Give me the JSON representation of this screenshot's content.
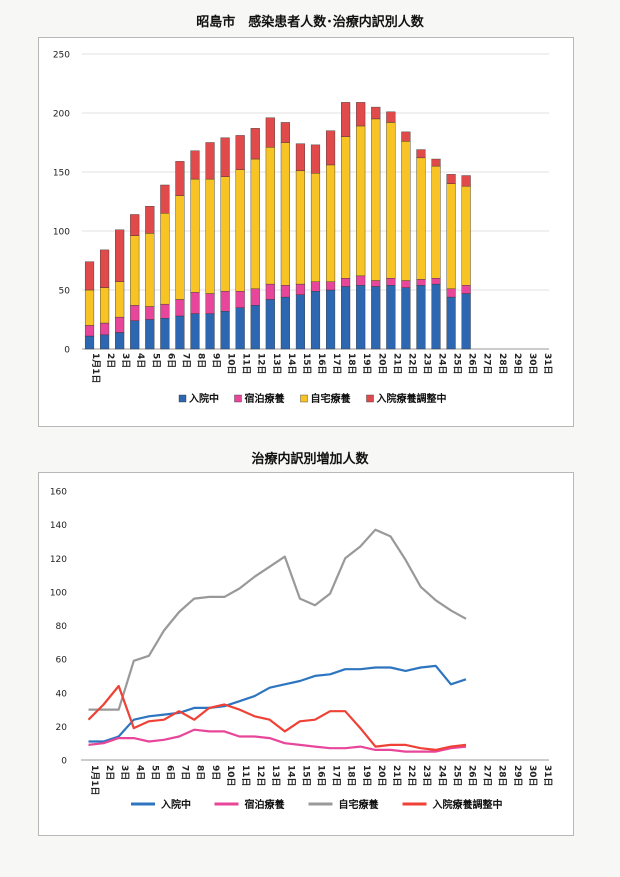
{
  "chart_data": [
    {
      "type": "bar",
      "stacked": true,
      "title": "昭島市　感染患者人数･治療内訳別人数",
      "categories": [
        "1月1日",
        "2日",
        "3日",
        "4日",
        "5日",
        "6日",
        "7日",
        "8日",
        "9日",
        "10日",
        "11日",
        "12日",
        "13日",
        "14日",
        "15日",
        "16日",
        "17日",
        "18日",
        "19日",
        "20日",
        "21日",
        "22日",
        "23日",
        "24日",
        "25日",
        "26日",
        "27日",
        "28日",
        "29日",
        "30日",
        "31日"
      ],
      "series": [
        {
          "name": "入院中",
          "color": "#2e67b1",
          "values": [
            11,
            12,
            14,
            24,
            25,
            26,
            28,
            30,
            30,
            32,
            35,
            37,
            42,
            44,
            46,
            49,
            50,
            53,
            54,
            53,
            54,
            52,
            54,
            55,
            44,
            47,
            null,
            null,
            null,
            null,
            null
          ]
        },
        {
          "name": "宿泊療養",
          "color": "#e8469a",
          "values": [
            9,
            10,
            13,
            13,
            11,
            12,
            14,
            18,
            17,
            17,
            14,
            14,
            13,
            10,
            9,
            8,
            7,
            7,
            8,
            5,
            6,
            6,
            5,
            5,
            7,
            7,
            null,
            null,
            null,
            null,
            null
          ]
        },
        {
          "name": "自宅療養",
          "color": "#f7c325",
          "values": [
            30,
            30,
            30,
            59,
            62,
            77,
            88,
            96,
            97,
            97,
            103,
            110,
            116,
            121,
            96,
            92,
            99,
            120,
            127,
            137,
            132,
            118,
            103,
            95,
            89,
            84,
            null,
            null,
            null,
            null,
            null
          ]
        },
        {
          "name": "入院療養調整中",
          "color": "#e04a4a",
          "values": [
            24,
            32,
            44,
            18,
            23,
            24,
            29,
            24,
            31,
            33,
            29,
            26,
            25,
            17,
            23,
            24,
            29,
            29,
            20,
            10,
            9,
            8,
            7,
            6,
            8,
            9,
            null,
            null,
            null,
            null,
            null
          ]
        }
      ],
      "ylim": [
        0,
        250
      ],
      "yticks": [
        0,
        50,
        100,
        150,
        200,
        250
      ],
      "grid": true,
      "legend": "bottom"
    },
    {
      "type": "line",
      "title": "治療内訳別増加人数",
      "categories": [
        "1月1日",
        "2日",
        "3日",
        "4日",
        "5日",
        "6日",
        "7日",
        "8日",
        "9日",
        "10日",
        "11日",
        "12日",
        "13日",
        "14日",
        "15日",
        "16日",
        "17日",
        "18日",
        "19日",
        "20日",
        "21日",
        "22日",
        "23日",
        "24日",
        "25日",
        "26日",
        "27日",
        "28日",
        "29日",
        "30日",
        "31日"
      ],
      "series": [
        {
          "name": "入院中",
          "color": "#2e75c0",
          "values": [
            11,
            11,
            14,
            24,
            26,
            27,
            28,
            31,
            31,
            32,
            35,
            38,
            43,
            45,
            47,
            50,
            51,
            54,
            54,
            55,
            55,
            53,
            55,
            56,
            45,
            48,
            null,
            null,
            null,
            null,
            null
          ]
        },
        {
          "name": "宿泊療養",
          "color": "#e8469a",
          "values": [
            9,
            10,
            13,
            13,
            11,
            12,
            14,
            18,
            17,
            17,
            14,
            14,
            13,
            10,
            9,
            8,
            7,
            7,
            8,
            6,
            6,
            5,
            5,
            5,
            7,
            8,
            null,
            null,
            null,
            null,
            null
          ]
        },
        {
          "name": "自宅療養",
          "color": "#999999",
          "values": [
            30,
            30,
            30,
            59,
            62,
            77,
            88,
            96,
            97,
            97,
            102,
            109,
            115,
            121,
            96,
            92,
            99,
            120,
            127,
            137,
            133,
            119,
            103,
            95,
            89,
            84,
            null,
            null,
            null,
            null,
            null
          ]
        },
        {
          "name": "入院療養調整中",
          "color": "#ef4136",
          "values": [
            24,
            33,
            44,
            19,
            23,
            24,
            29,
            24,
            31,
            33,
            30,
            26,
            24,
            17,
            23,
            24,
            29,
            29,
            19,
            8,
            9,
            9,
            7,
            6,
            8,
            9,
            null,
            null,
            null,
            null,
            null
          ]
        }
      ],
      "ylim": [
        0,
        160
      ],
      "yticks": [
        0,
        20,
        40,
        60,
        80,
        100,
        120,
        140,
        160
      ],
      "grid": false,
      "legend": "bottom"
    }
  ]
}
